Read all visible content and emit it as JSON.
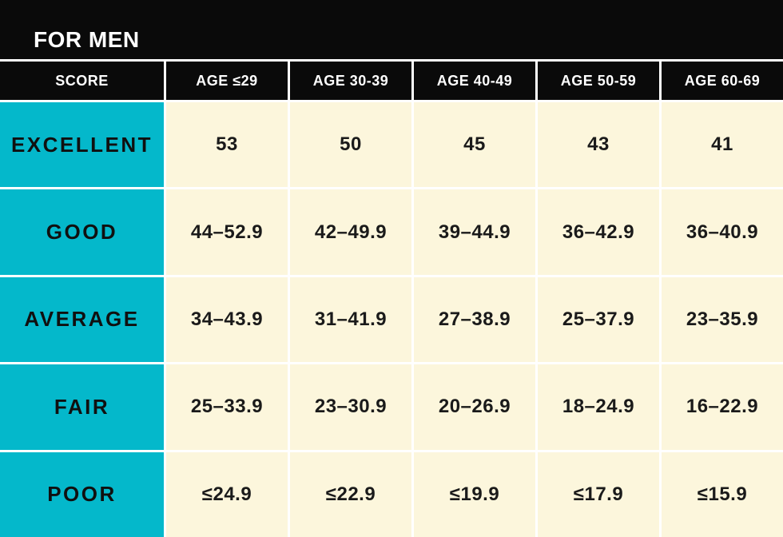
{
  "title": "FOR MEN",
  "colors": {
    "background_black": "#0a0a0a",
    "accent_cyan": "#04b8cb",
    "cell_cream": "#fcf6dc",
    "divider_white": "#ffffff"
  },
  "table": {
    "columns": [
      "SCORE",
      "AGE ≤29",
      "AGE 30-39",
      "AGE 40-49",
      "AGE 50-59",
      "AGE 60-69"
    ],
    "rows": [
      {
        "label": "EXCELLENT",
        "values": [
          "53",
          "50",
          "45",
          "43",
          "41"
        ]
      },
      {
        "label": "GOOD",
        "values": [
          "44–52.9",
          "42–49.9",
          "39–44.9",
          "36–42.9",
          "36–40.9"
        ]
      },
      {
        "label": "AVERAGE",
        "values": [
          "34–43.9",
          "31–41.9",
          "27–38.9",
          "25–37.9",
          "23–35.9"
        ]
      },
      {
        "label": "FAIR",
        "values": [
          "25–33.9",
          "23–30.9",
          "20–26.9",
          "18–24.9",
          "16–22.9"
        ]
      },
      {
        "label": "POOR",
        "values": [
          "≤24.9",
          "≤22.9",
          "≤19.9",
          "≤17.9",
          "≤15.9"
        ]
      }
    ]
  },
  "chart_data": {
    "type": "table",
    "title": "FOR MEN",
    "columns": [
      "SCORE",
      "AGE ≤29",
      "AGE 30-39",
      "AGE 40-49",
      "AGE 50-59",
      "AGE 60-69"
    ],
    "rows": [
      [
        "EXCELLENT",
        "53",
        "50",
        "45",
        "43",
        "41"
      ],
      [
        "GOOD",
        "44–52.9",
        "42–49.9",
        "39–44.9",
        "36–42.9",
        "36–40.9"
      ],
      [
        "AVERAGE",
        "34–43.9",
        "31–41.9",
        "27–38.9",
        "25–37.9",
        "23–35.9"
      ],
      [
        "FAIR",
        "25–33.9",
        "23–30.9",
        "20–26.9",
        "18–24.9",
        "16–22.9"
      ],
      [
        "POOR",
        "≤24.9",
        "≤22.9",
        "≤19.9",
        "≤17.9",
        "≤15.9"
      ]
    ],
    "legend_position": "none",
    "grid": "white dividers between solid cells"
  }
}
